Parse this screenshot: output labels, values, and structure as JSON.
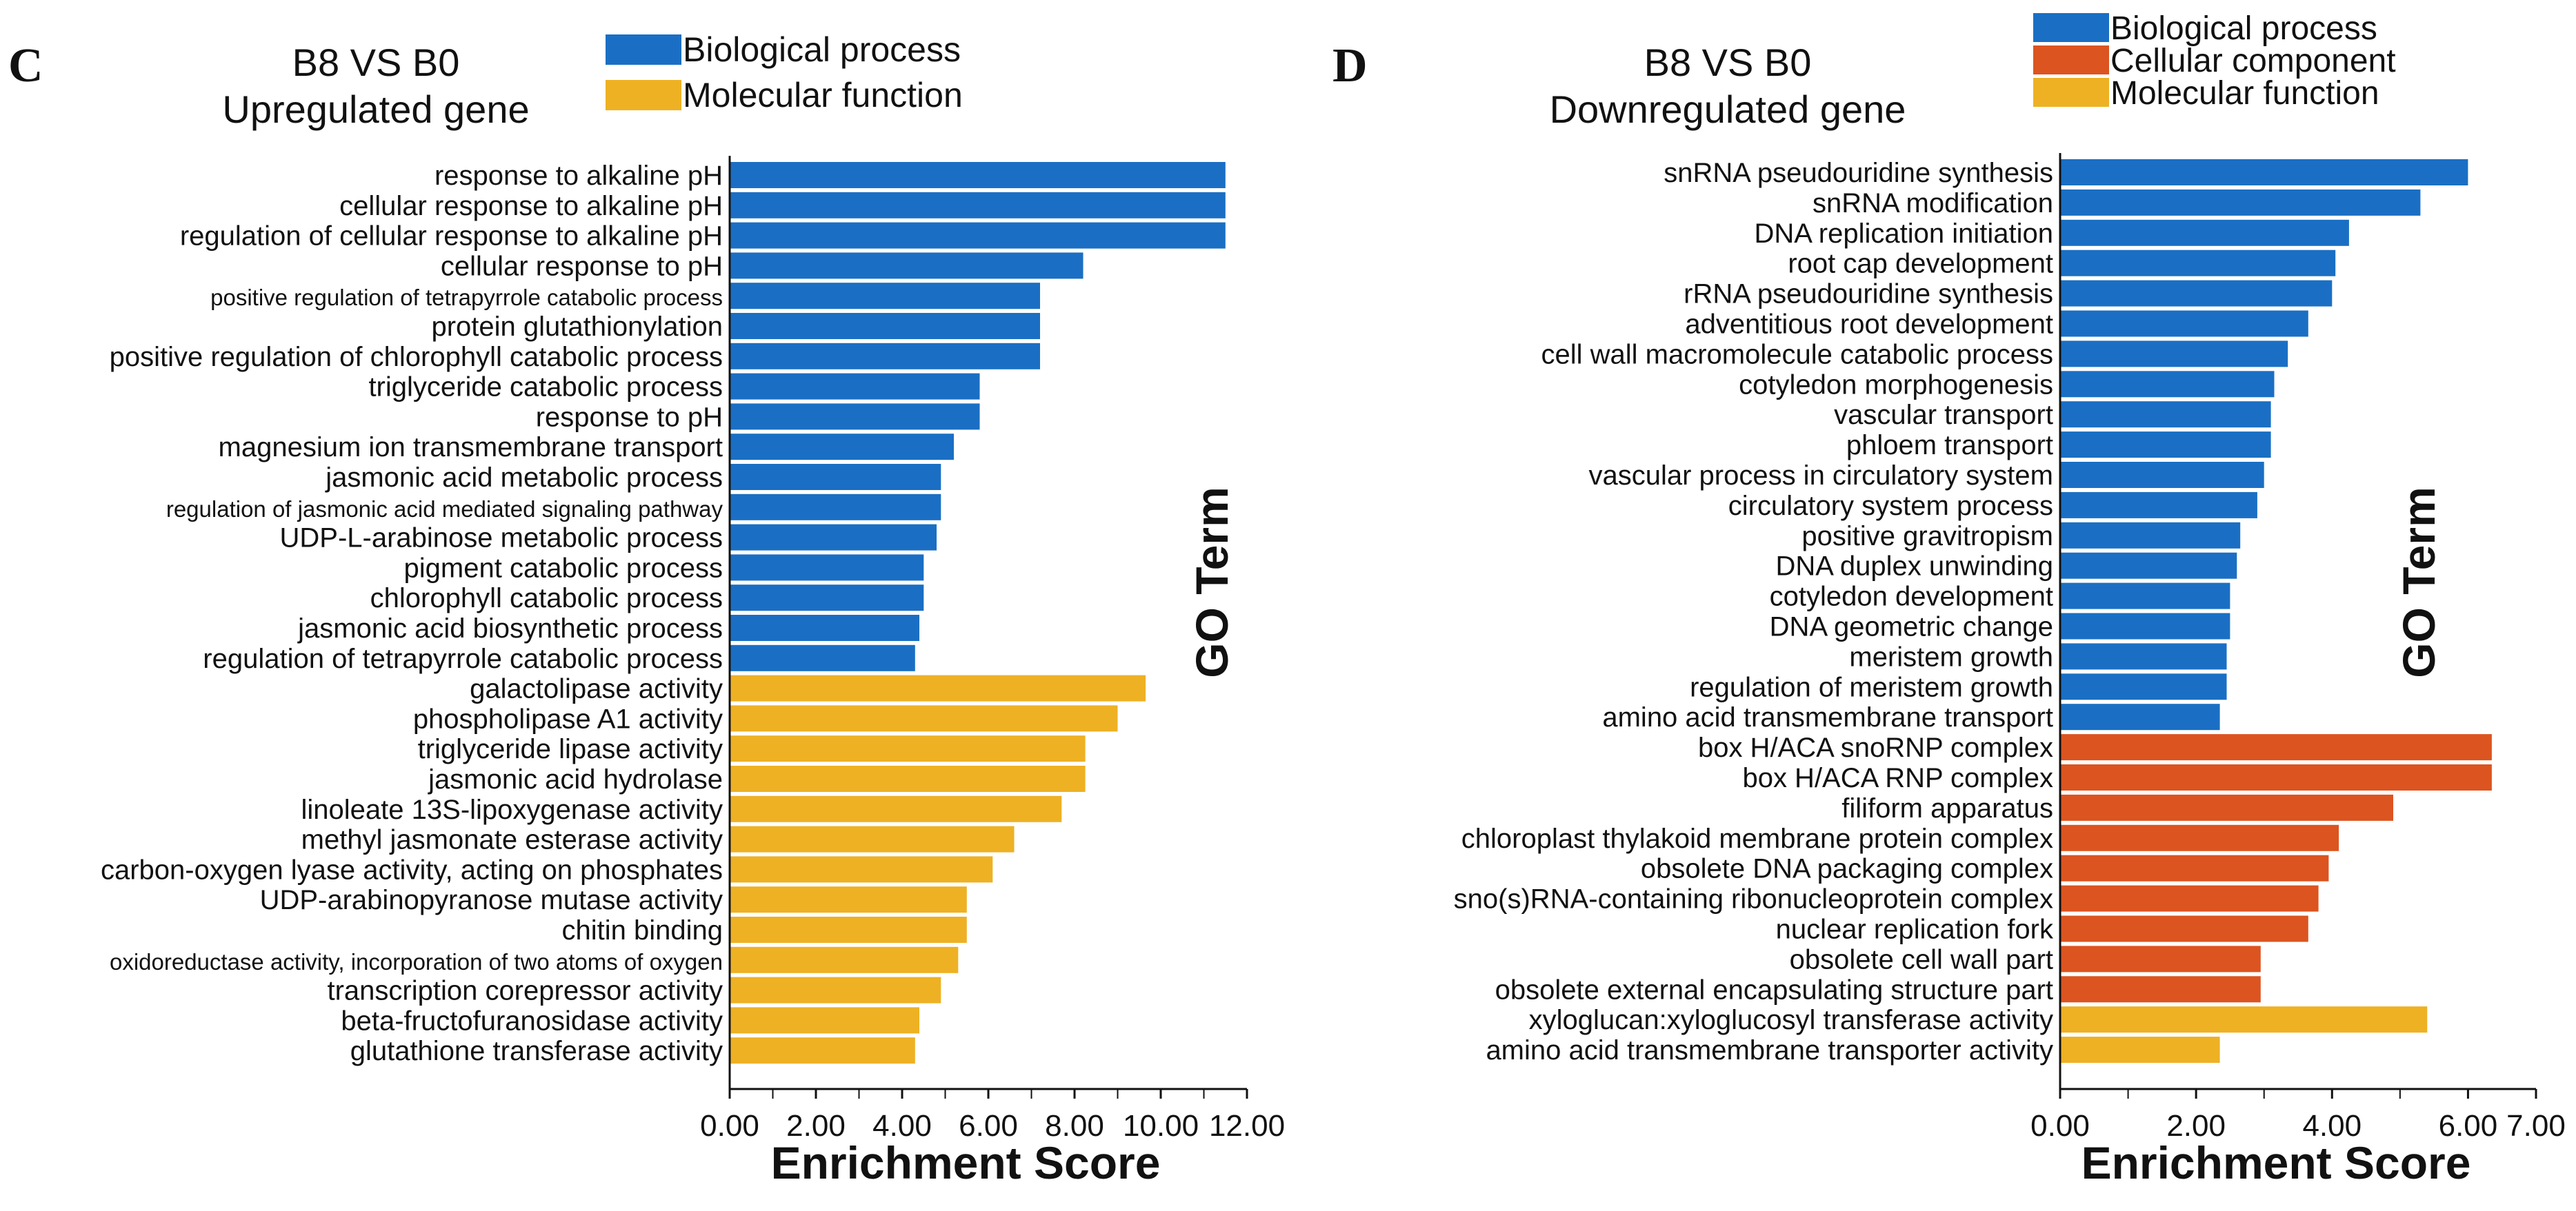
{
  "colors": {
    "Biological process": "#1a6fc4",
    "Cellular component": "#dc5420",
    "Molecular function": "#eeb124"
  },
  "chart_data": [
    {
      "type": "bar",
      "orientation": "horizontal",
      "panel": "C",
      "title": [
        "B8 VS B0",
        "Upregulated gene"
      ],
      "xlabel": "Enrichment Score",
      "ylabel": "GO Term",
      "xlim": [
        0,
        12
      ],
      "xticks": [
        "0.00",
        "2.00",
        "4.00",
        "6.00",
        "8.00",
        "10.00",
        "12.00"
      ],
      "legend": [
        {
          "name": "Biological process",
          "color": "#1a6fc4"
        },
        {
          "name": "Molecular function",
          "color": "#eeb124"
        }
      ],
      "categories": [
        "response to alkaline pH",
        "cellular response to alkaline pH",
        "regulation of cellular response to alkaline pH",
        "cellular response to pH",
        "positive regulation of tetrapyrrole catabolic process",
        "protein glutathionylation",
        "positive regulation of chlorophyll catabolic process",
        "triglyceride catabolic process",
        "response to pH",
        "magnesium ion transmembrane transport",
        "jasmonic acid metabolic process",
        "regulation of jasmonic acid mediated signaling pathway",
        "UDP-L-arabinose metabolic process",
        "pigment catabolic process",
        "chlorophyll catabolic process",
        "jasmonic acid biosynthetic process",
        "regulation of tetrapyrrole catabolic process",
        "galactolipase activity",
        "phospholipase A1 activity",
        "triglyceride lipase activity",
        "jasmonic acid hydrolase",
        "linoleate 13S-lipoxygenase activity",
        "methyl jasmonate esterase activity",
        "carbon-oxygen lyase activity, acting on phosphates",
        "UDP-arabinopyranose mutase activity",
        "chitin binding",
        "oxidoreductase activity, incorporation of two atoms of oxygen",
        "transcription corepressor activity",
        "beta-fructofuranosidase activity",
        "glutathione transferase activity"
      ],
      "values": [
        11.5,
        11.5,
        11.5,
        8.2,
        7.2,
        7.2,
        7.2,
        5.8,
        5.8,
        5.2,
        4.9,
        4.9,
        4.8,
        4.5,
        4.5,
        4.4,
        4.3,
        9.65,
        9.0,
        8.25,
        8.25,
        7.7,
        6.6,
        6.1,
        5.5,
        5.5,
        5.3,
        4.9,
        4.4,
        4.3
      ],
      "groups": [
        "Biological process",
        "Biological process",
        "Biological process",
        "Biological process",
        "Biological process",
        "Biological process",
        "Biological process",
        "Biological process",
        "Biological process",
        "Biological process",
        "Biological process",
        "Biological process",
        "Biological process",
        "Biological process",
        "Biological process",
        "Biological process",
        "Biological process",
        "Molecular function",
        "Molecular function",
        "Molecular function",
        "Molecular function",
        "Molecular function",
        "Molecular function",
        "Molecular function",
        "Molecular function",
        "Molecular function",
        "Molecular function",
        "Molecular function",
        "Molecular function",
        "Molecular function"
      ]
    },
    {
      "type": "bar",
      "orientation": "horizontal",
      "panel": "D",
      "title": [
        "B8 VS B0",
        "Downregulated gene"
      ],
      "xlabel": "Enrichment Score",
      "ylabel": "GO Term",
      "xlim": [
        0,
        7
      ],
      "xticks": [
        "0.00",
        "2.00",
        "4.00",
        "6.00",
        "7.00"
      ],
      "legend": [
        {
          "name": "Biological process",
          "color": "#1a6fc4"
        },
        {
          "name": "Cellular component",
          "color": "#dc5420"
        },
        {
          "name": "Molecular function",
          "color": "#eeb124"
        }
      ],
      "categories": [
        "snRNA pseudouridine synthesis",
        "snRNA modification",
        "DNA replication initiation",
        "root cap development",
        "rRNA pseudouridine synthesis",
        "adventitious root development",
        "cell wall macromolecule catabolic process",
        "cotyledon morphogenesis",
        "vascular transport",
        "phloem transport",
        "vascular process in circulatory system",
        "circulatory system process",
        "positive gravitropism",
        "DNA duplex unwinding",
        "cotyledon development",
        "DNA geometric change",
        "meristem growth",
        "regulation of meristem growth",
        "amino acid transmembrane transport",
        "box H/ACA snoRNP complex",
        "box H/ACA RNP complex",
        "filiform apparatus",
        "chloroplast thylakoid membrane protein complex",
        "obsolete DNA packaging complex",
        "sno(s)RNA-containing ribonucleoprotein complex",
        "nuclear replication fork",
        "obsolete cell wall part",
        "obsolete external encapsulating structure part",
        "xyloglucan:xyloglucosyl transferase activity",
        "amino acid transmembrane transporter activity"
      ],
      "values": [
        6.0,
        5.3,
        4.25,
        4.05,
        4.0,
        3.65,
        3.35,
        3.15,
        3.1,
        3.1,
        3.0,
        2.9,
        2.65,
        2.6,
        2.5,
        2.5,
        2.45,
        2.45,
        2.35,
        6.35,
        6.35,
        4.9,
        4.1,
        3.95,
        3.8,
        3.65,
        2.95,
        2.95,
        5.4,
        2.35
      ],
      "groups": [
        "Biological process",
        "Biological process",
        "Biological process",
        "Biological process",
        "Biological process",
        "Biological process",
        "Biological process",
        "Biological process",
        "Biological process",
        "Biological process",
        "Biological process",
        "Biological process",
        "Biological process",
        "Biological process",
        "Biological process",
        "Biological process",
        "Biological process",
        "Biological process",
        "Biological process",
        "Cellular component",
        "Cellular component",
        "Cellular component",
        "Cellular component",
        "Cellular component",
        "Cellular component",
        "Cellular component",
        "Cellular component",
        "Cellular component",
        "Molecular function",
        "Molecular function"
      ]
    }
  ]
}
